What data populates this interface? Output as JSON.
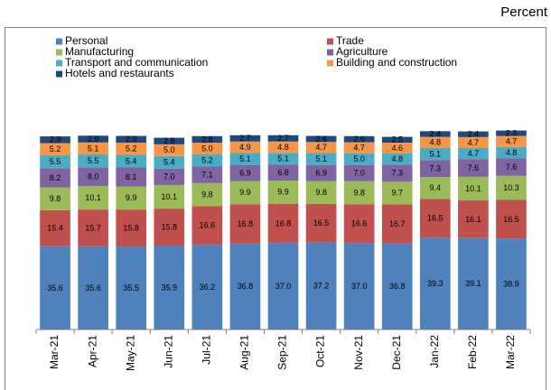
{
  "chart_data": {
    "type": "stacked_bar",
    "unit_label": "Percent",
    "categories": [
      "Mar-21",
      "Apr-21",
      "May-21",
      "Jun-21",
      "Jul-21",
      "Aug-21",
      "Sep-21",
      "Oct-21",
      "Nov-21",
      "Dec-21",
      "Jan-22",
      "Feb-22",
      "Mar-22"
    ],
    "ylim": [
      0,
      100
    ],
    "series": [
      {
        "name": "Personal",
        "color": "#4f81bd",
        "values": [
          35.6,
          35.6,
          35.5,
          35.9,
          36.2,
          36.8,
          37.0,
          37.2,
          37.0,
          36.8,
          39.3,
          39.1,
          38.9
        ],
        "value_labels": [
          "35.6",
          "35.6",
          "35.5",
          "35.9",
          "36.2",
          "36.8",
          "37.0",
          "37.2",
          "37.0",
          "36.8",
          "39.3",
          "39.1",
          "38.9"
        ]
      },
      {
        "name": "Trade",
        "color": "#c0504d",
        "values": [
          15.4,
          15.7,
          15.8,
          15.8,
          16.6,
          16.8,
          16.8,
          16.5,
          16.6,
          16.7,
          16.5,
          16.1,
          16.5
        ],
        "value_labels": [
          "15.4",
          "15.7",
          "15.8",
          "15.8",
          "16.6",
          "16.8",
          "16.8",
          "16.5",
          "16.6",
          "16.7",
          "16.5",
          "16.1",
          "16.5"
        ]
      },
      {
        "name": "Manufacturing",
        "color": "#9bbb59",
        "values": [
          9.8,
          10.1,
          9.9,
          10.1,
          9.8,
          9.9,
          9.9,
          9.8,
          9.8,
          9.7,
          9.4,
          10.1,
          10.3
        ],
        "value_labels": [
          "9.8",
          "10.1",
          "9.9",
          "10.1",
          "9.8",
          "9.9",
          "9.9",
          "9.8",
          "9.8",
          "9.7",
          "9.4",
          "10.1",
          "10.3"
        ]
      },
      {
        "name": "Agriculture",
        "color": "#8064a2",
        "values": [
          8.2,
          8.0,
          8.1,
          7.0,
          7.1,
          6.9,
          6.8,
          6.9,
          7.0,
          7.3,
          7.3,
          7.6,
          7.6
        ],
        "value_labels": [
          "8.2",
          "8.0",
          "8.1",
          "7.0",
          "7.1",
          "6.9",
          "6.8",
          "6.9",
          "7.0",
          "7.3",
          "7.3",
          "7.6",
          "7.6"
        ]
      },
      {
        "name": "Transport and communication",
        "color": "#4bacc6",
        "values": [
          5.5,
          5.5,
          5.4,
          5.4,
          5.2,
          5.1,
          5.1,
          5.1,
          5.0,
          4.8,
          5.1,
          4.7,
          4.8
        ],
        "value_labels": [
          "5.5",
          "5.5",
          "5.4",
          "5.4",
          "5.2",
          "5.1",
          "5.1",
          "5.1",
          "5.0",
          "4.8",
          "5.1",
          "4.7",
          "4.8"
        ]
      },
      {
        "name": "Building and construction",
        "color": "#f79646",
        "values": [
          5.2,
          5.1,
          5.2,
          5.0,
          5.0,
          4.9,
          4.8,
          4.7,
          4.7,
          4.6,
          4.8,
          4.7,
          4.7
        ],
        "value_labels": [
          "5.2",
          "5.1",
          "5.2",
          "5.0",
          "5.0",
          "4.9",
          "4.8",
          "4.7",
          "4.7",
          "4.6",
          "4.8",
          "4.7",
          "4.7"
        ]
      },
      {
        "name": "Hotels and restaurants",
        "color": "#1f497d",
        "values": [
          2.9,
          2.9,
          2.9,
          2.8,
          2.8,
          2.7,
          2.7,
          2.6,
          2.6,
          2.5,
          2.4,
          2.4,
          2.3
        ],
        "value_labels": [
          "2.9",
          "2.9",
          "2.9",
          "2.8",
          "2.8",
          "2.7",
          "2.7",
          "2.6",
          "2.6",
          "2.5",
          "2.4",
          "2.4",
          "2.3"
        ]
      }
    ]
  }
}
